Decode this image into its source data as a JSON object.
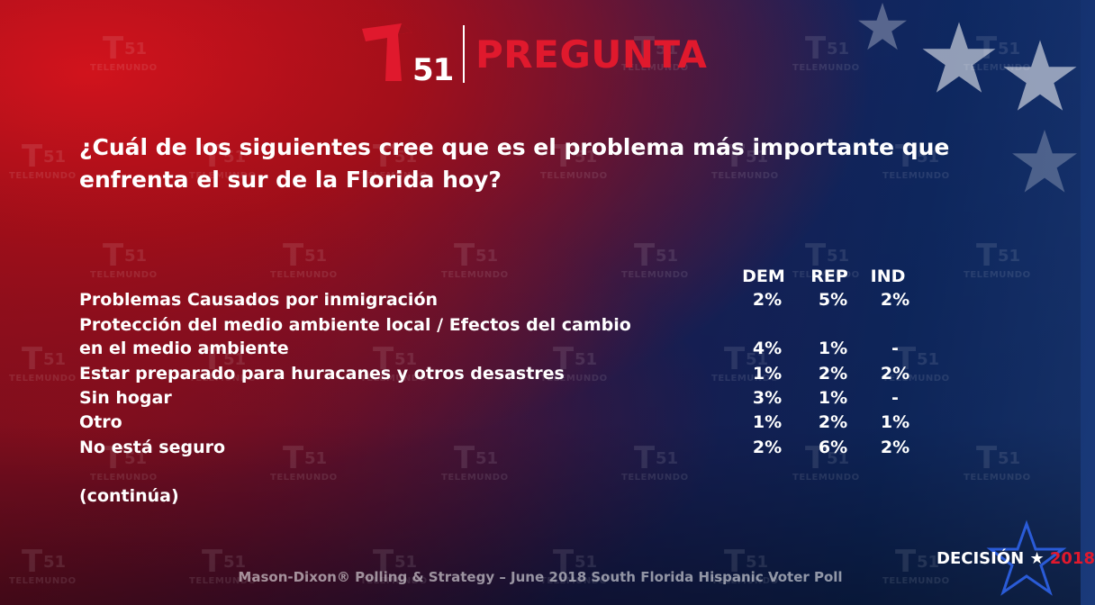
{
  "header": {
    "logo_number": "51",
    "title": "PREGUNTA"
  },
  "watermark": {
    "number": "51",
    "brand": "TELEMUNDO"
  },
  "question": "¿Cuál de los siguientes cree que es el problema más importante que enfrenta el sur de la Florida hoy?",
  "table": {
    "columns": [
      "DEM",
      "REP",
      "IND"
    ],
    "rows": [
      {
        "label": "Problemas Causados por inmigración",
        "values": [
          "2%",
          "5%",
          "2%"
        ]
      },
      {
        "label": "Protección del medio ambiente local / Efectos del cambio",
        "values": [
          "",
          "",
          ""
        ]
      },
      {
        "label": "en el medio ambiente",
        "values": [
          "4%",
          "1%",
          "-"
        ]
      },
      {
        "label": "Estar preparado para huracanes y otros desastres",
        "values": [
          "1%",
          "2%",
          "2%"
        ]
      },
      {
        "label": "Sin hogar",
        "values": [
          "3%",
          "1%",
          "-"
        ]
      },
      {
        "label": "Otro",
        "values": [
          "1%",
          "2%",
          "1%"
        ]
      },
      {
        "label": "No está seguro",
        "values": [
          "2%",
          "6%",
          "2%"
        ]
      }
    ]
  },
  "continued": "(continúa)",
  "footer": "Mason-Dixon® Polling & Strategy – June 2018 South Florida Hispanic Voter Poll",
  "badge": {
    "word": "DECISIÓN",
    "year": "2018"
  },
  "colors": {
    "brand_red": "#e0192d",
    "text": "#ffffff"
  }
}
